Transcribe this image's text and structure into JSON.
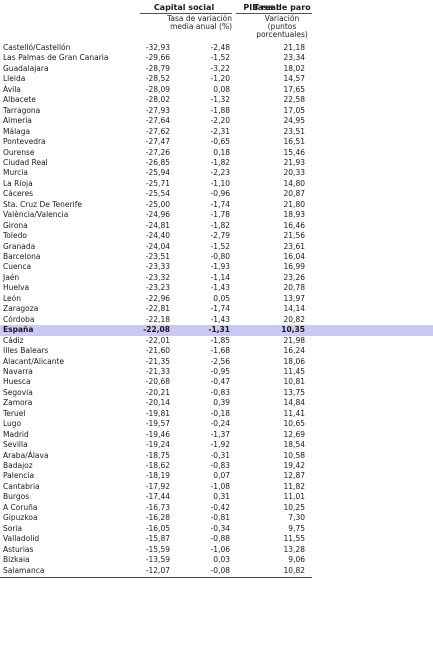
{
  "header": {
    "col1_title": "Capital social",
    "col1_sub": "Tasa de variación media anual (%)",
    "col2_title": "PIB real",
    "col3_title": "Tasa de paro",
    "col3_sub": "Variación (puntos porcentuales)"
  },
  "rows": [
    {
      "name": "Castelló/Castellón",
      "capital": "-32,93",
      "pib": "-2,48",
      "paro": "21,18"
    },
    {
      "name": "Las Palmas de Gran Canaria",
      "capital": "-29,66",
      "pib": "-1,52",
      "paro": "23,34"
    },
    {
      "name": "Guadalajara",
      "capital": "-28,79",
      "pib": "-3,22",
      "paro": "18,02"
    },
    {
      "name": "Lleida",
      "capital": "-28,52",
      "pib": "-1,20",
      "paro": "14,57"
    },
    {
      "name": "Ávila",
      "capital": "-28,09",
      "pib": "0,08",
      "paro": "17,65"
    },
    {
      "name": "Albacete",
      "capital": "-28,02",
      "pib": "-1,32",
      "paro": "22,58"
    },
    {
      "name": "Tarragona",
      "capital": "-27,93",
      "pib": "-1,88",
      "paro": "17,05"
    },
    {
      "name": "Almería",
      "capital": "-27,64",
      "pib": "-2,20",
      "paro": "24,95"
    },
    {
      "name": "Málaga",
      "capital": "-27,62",
      "pib": "-2,31",
      "paro": "23,51"
    },
    {
      "name": "Pontevedra",
      "capital": "-27,47",
      "pib": "-0,65",
      "paro": "16,51"
    },
    {
      "name": "Ourense",
      "capital": "-27,26",
      "pib": "0,18",
      "paro": "15,46"
    },
    {
      "name": "Ciudad Real",
      "capital": "-26,85",
      "pib": "-1,82",
      "paro": "21,93"
    },
    {
      "name": "Murcia",
      "capital": "-25,94",
      "pib": "-2,23",
      "paro": "20,33"
    },
    {
      "name": "La Rioja",
      "capital": "-25,71",
      "pib": "-1,10",
      "paro": "14,80"
    },
    {
      "name": "Cáceres",
      "capital": "-25,54",
      "pib": "-0,96",
      "paro": "20,87"
    },
    {
      "name": "Sta. Cruz De Tenerife",
      "capital": "-25,00",
      "pib": "-1,74",
      "paro": "21,80"
    },
    {
      "name": "València/Valencia",
      "capital": "-24,96",
      "pib": "-1,78",
      "paro": "18,93"
    },
    {
      "name": "Girona",
      "capital": "-24,81",
      "pib": "-1,82",
      "paro": "16,46"
    },
    {
      "name": "Toledo",
      "capital": "-24,40",
      "pib": "-2,79",
      "paro": "21,56"
    },
    {
      "name": "Granada",
      "capital": "-24,04",
      "pib": "-1,52",
      "paro": "23,61"
    },
    {
      "name": "Barcelona",
      "capital": "-23,51",
      "pib": "-0,80",
      "paro": "16,04"
    },
    {
      "name": "Cuenca",
      "capital": "-23,33",
      "pib": "-1,93",
      "paro": "16,99"
    },
    {
      "name": "Jaén",
      "capital": "-23,32",
      "pib": "-1,14",
      "paro": "23,26"
    },
    {
      "name": "Huelva",
      "capital": "-23,23",
      "pib": "-1,43",
      "paro": "20,78"
    },
    {
      "name": "León",
      "capital": "-22,96",
      "pib": "0,05",
      "paro": "13,97"
    },
    {
      "name": "Zaragoza",
      "capital": "-22,81",
      "pib": "-1,74",
      "paro": "14,14"
    },
    {
      "name": "Córdoba",
      "capital": "-22,18",
      "pib": "-1,43",
      "paro": "20,82"
    },
    {
      "name": "España",
      "capital": "-22,08",
      "pib": "-1,31",
      "paro": "10,35",
      "highlight": true
    },
    {
      "name": "Cádiz",
      "capital": "-22,01",
      "pib": "-1,85",
      "paro": "21,98"
    },
    {
      "name": "Illes Balears",
      "capital": "-21,60",
      "pib": "-1,68",
      "paro": "16,24"
    },
    {
      "name": "Alacant/Alicante",
      "capital": "-21,35",
      "pib": "-2,56",
      "paro": "18,06"
    },
    {
      "name": "Navarra",
      "capital": "-21,33",
      "pib": "-0,95",
      "paro": "11,45"
    },
    {
      "name": "Huesca",
      "capital": "-20,68",
      "pib": "-0,47",
      "paro": "10,81"
    },
    {
      "name": "Segovia",
      "capital": "-20,21",
      "pib": "-0,83",
      "paro": "13,75"
    },
    {
      "name": "Zamora",
      "capital": "-20,14",
      "pib": "0,39",
      "paro": "14,84"
    },
    {
      "name": "Teruel",
      "capital": "-19,81",
      "pib": "-0,18",
      "paro": "11,41"
    },
    {
      "name": "Lugo",
      "capital": "-19,57",
      "pib": "-0,24",
      "paro": "10,65"
    },
    {
      "name": "Madrid",
      "capital": "-19,46",
      "pib": "-1,37",
      "paro": "12,69"
    },
    {
      "name": "Sevilla",
      "capital": "-19,24",
      "pib": "-1,92",
      "paro": "18,54"
    },
    {
      "name": "Araba/Álava",
      "capital": "-18,75",
      "pib": "-0,31",
      "paro": "10,58"
    },
    {
      "name": "Badajoz",
      "capital": "-18,62",
      "pib": "-0,83",
      "paro": "19,42"
    },
    {
      "name": "Palencia",
      "capital": "-18,19",
      "pib": "0,07",
      "paro": "12,87"
    },
    {
      "name": "Cantabria",
      "capital": "-17,92",
      "pib": "-1,08",
      "paro": "11,82"
    },
    {
      "name": "Burgos",
      "capital": "-17,44",
      "pib": "0,31",
      "paro": "11,01"
    },
    {
      "name": "A Coruña",
      "capital": "-16,73",
      "pib": "-0,42",
      "paro": "10,25"
    },
    {
      "name": "Gipuzkoa",
      "capital": "-16,28",
      "pib": "-0,81",
      "paro": "7,30"
    },
    {
      "name": "Soria",
      "capital": "-16,05",
      "pib": "-0,34",
      "paro": "9,75"
    },
    {
      "name": "Valladolid",
      "capital": "-15,87",
      "pib": "-0,88",
      "paro": "11,55"
    },
    {
      "name": "Asturias",
      "capital": "-15,59",
      "pib": "-1,06",
      "paro": "13,28"
    },
    {
      "name": "Bizkaia",
      "capital": "-13,59",
      "pib": "0,03",
      "paro": "9,06"
    },
    {
      "name": "Salamanca",
      "capital": "-12,07",
      "pib": "-0,08",
      "paro": "10,82"
    }
  ]
}
